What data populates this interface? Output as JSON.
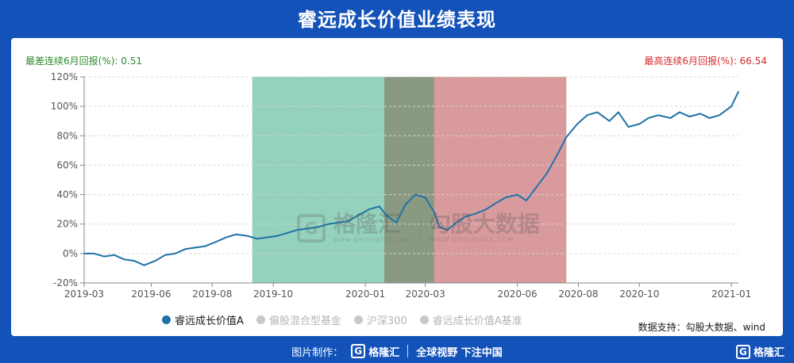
{
  "title": "睿远成长价值业绩表现",
  "worst_stat": {
    "label": "最差连续6月回报(%):",
    "value": "0.51"
  },
  "best_stat": {
    "label": "最高连续6月回报(%):",
    "value": "66.54"
  },
  "source": "数据支持：勾股大数据、wind",
  "footer": {
    "made_by": "图片制作：",
    "brand": "格隆汇",
    "slogan": "全球视野 下注中国",
    "corner_brand": "格隆汇"
  },
  "watermark": {
    "brand1": "格隆汇",
    "brand1_url": "www.gelonghui.com",
    "brand2": "勾股大数据",
    "brand2_url": "WWW.GOGUDATA.COM"
  },
  "colors": {
    "series": "#1f72a6",
    "green_band": "#94d2bd",
    "red_band": "#d99a9d",
    "overlap_band": "#8a9a82",
    "axis_text": "#555555",
    "grid": "#d6d6d6"
  },
  "chart_data": {
    "type": "line",
    "title": "睿远成长价值业绩表现",
    "x_ticks": [
      "2019-03",
      "2019-06",
      "2019-08",
      "2019-10",
      "2020-01",
      "2020-03",
      "2020-06",
      "2020-08",
      "2020-10",
      "2021-01"
    ],
    "y_ticks": [
      "120%",
      "100%",
      "80%",
      "60%",
      "40%",
      "20%",
      "0%",
      "-20%"
    ],
    "ylim": [
      -20,
      120
    ],
    "xlim": [
      "2019-03-26",
      "2021-01-08"
    ],
    "grid": "horizontal",
    "legend_position": "bottom",
    "legend": [
      {
        "name": "睿远成长价值A",
        "active": true
      },
      {
        "name": "偏股混合型基金",
        "active": false
      },
      {
        "name": "沪深300",
        "active": false
      },
      {
        "name": "睿远成长价值A基准",
        "active": false
      }
    ],
    "bands": [
      {
        "name": "worst",
        "start": "2019-09-10",
        "end": "2020-03-10",
        "color": "green"
      },
      {
        "name": "best",
        "start": "2020-01-20",
        "end": "2020-07-20",
        "color": "red"
      }
    ],
    "series": [
      {
        "name": "睿远成长价值A",
        "x": [
          "2019-03-26",
          "2019-04-05",
          "2019-04-15",
          "2019-04-25",
          "2019-05-05",
          "2019-05-15",
          "2019-05-25",
          "2019-06-05",
          "2019-06-15",
          "2019-06-25",
          "2019-07-05",
          "2019-07-15",
          "2019-07-25",
          "2019-08-05",
          "2019-08-15",
          "2019-08-25",
          "2019-09-05",
          "2019-09-15",
          "2019-09-25",
          "2019-10-05",
          "2019-10-15",
          "2019-10-25",
          "2019-11-05",
          "2019-11-15",
          "2019-11-25",
          "2019-12-05",
          "2019-12-15",
          "2019-12-25",
          "2020-01-05",
          "2020-01-15",
          "2020-01-22",
          "2020-02-01",
          "2020-02-10",
          "2020-02-20",
          "2020-03-01",
          "2020-03-10",
          "2020-03-15",
          "2020-03-23",
          "2020-04-01",
          "2020-04-10",
          "2020-04-20",
          "2020-05-01",
          "2020-05-10",
          "2020-05-20",
          "2020-06-01",
          "2020-06-10",
          "2020-06-20",
          "2020-07-01",
          "2020-07-10",
          "2020-07-20",
          "2020-07-31",
          "2020-08-10",
          "2020-08-20",
          "2020-09-01",
          "2020-09-10",
          "2020-09-20",
          "2020-10-01",
          "2020-10-10",
          "2020-10-20",
          "2020-11-01",
          "2020-11-10",
          "2020-11-20",
          "2020-12-01",
          "2020-12-10",
          "2020-12-20",
          "2021-01-01",
          "2021-01-08"
        ],
        "values": [
          0,
          0,
          -2,
          -1,
          -4,
          -5,
          -8,
          -5,
          -1,
          0,
          3,
          4,
          5,
          8,
          11,
          13,
          12,
          10,
          11,
          12,
          14,
          16,
          17,
          18,
          20,
          21,
          22,
          26,
          30,
          32,
          26,
          21,
          33,
          40,
          38,
          28,
          18,
          16,
          21,
          25,
          27,
          30,
          34,
          38,
          40,
          36,
          45,
          55,
          66,
          79,
          88,
          94,
          96,
          90,
          96,
          86,
          88,
          92,
          94,
          92,
          96,
          93,
          95,
          92,
          94,
          100,
          110
        ]
      }
    ]
  }
}
